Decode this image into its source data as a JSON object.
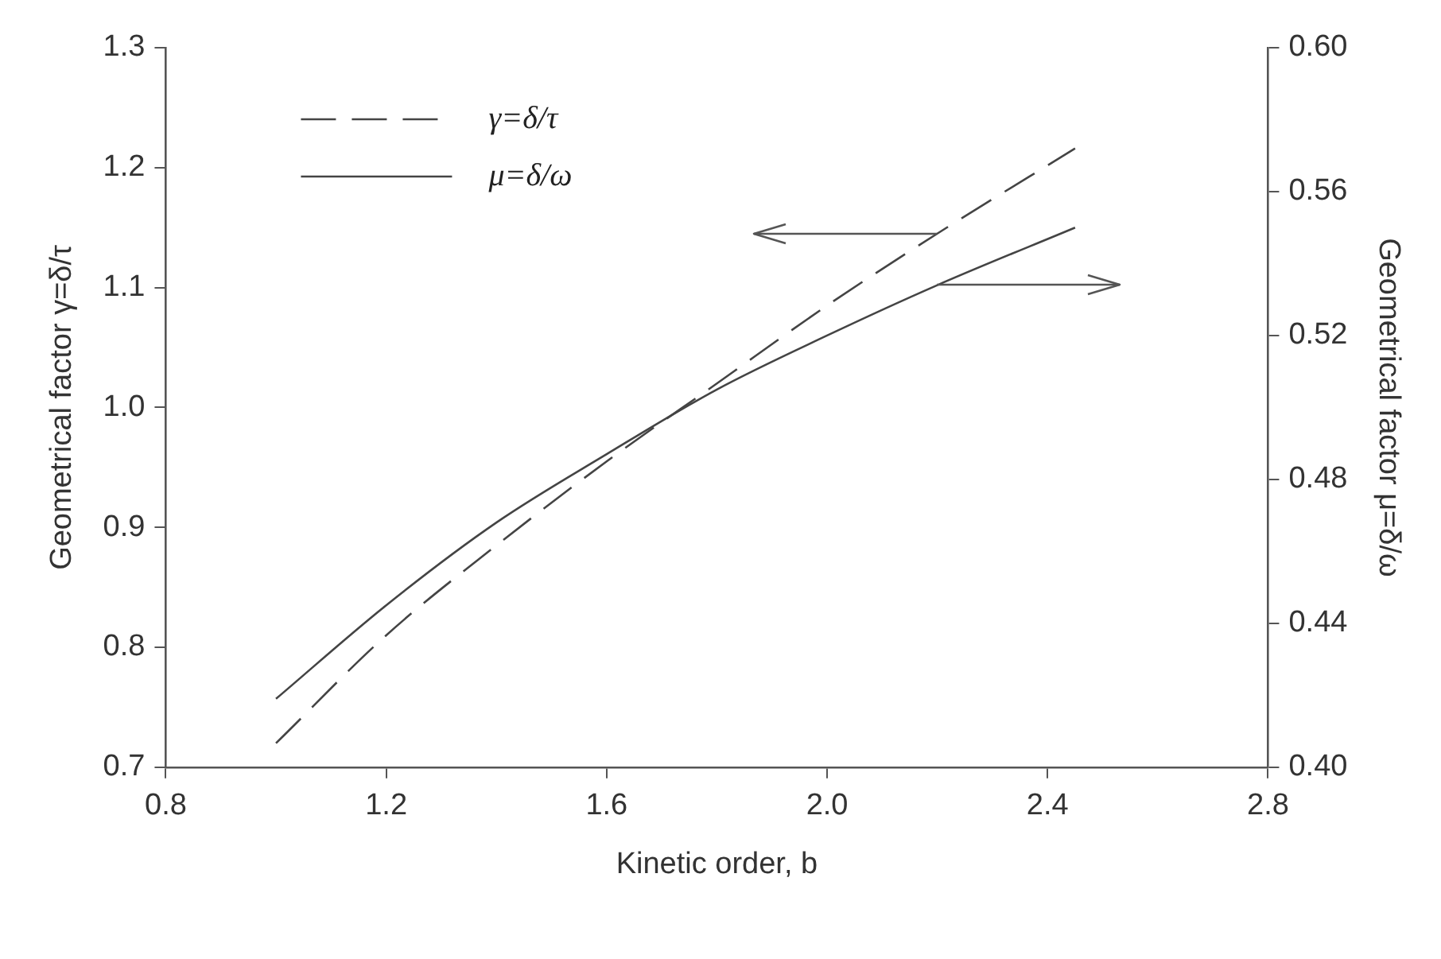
{
  "chart_data": {
    "type": "line",
    "xlabel": "Kinetic order, b",
    "ylabel": "Geometrical factor γ=δ/τ",
    "y2label": "Geometrical factor μ=δ/ω",
    "series": [
      {
        "name": "γ=δ/τ",
        "color": "#444444",
        "line_style": "dashed",
        "x": [
          1.0,
          1.2,
          1.4,
          1.6,
          1.8,
          2.0,
          2.2,
          2.45
        ],
        "values": [
          0.72,
          0.81,
          0.885,
          0.955,
          1.02,
          1.085,
          1.145,
          1.216
        ]
      },
      {
        "name": "μ=δ/ω",
        "color": "#444444",
        "line_style": "solid",
        "axis": "y2",
        "x": [
          1.0,
          1.2,
          1.4,
          1.6,
          1.8,
          2.0,
          2.2,
          2.45
        ],
        "values": [
          0.419,
          0.445,
          0.468,
          0.487,
          0.505,
          0.52,
          0.534,
          0.55
        ]
      }
    ],
    "xlim": [
      0.8,
      2.8
    ],
    "xticks": [
      {
        "value": 0.8,
        "label": "0.8"
      },
      {
        "value": 1.2,
        "label": "1.2"
      },
      {
        "value": 1.6,
        "label": "1.6"
      },
      {
        "value": 2.0,
        "label": "2.0"
      },
      {
        "value": 2.4,
        "label": "2.4"
      },
      {
        "value": 2.8,
        "label": "2.8"
      }
    ],
    "ylim": [
      0.7,
      1.3
    ],
    "yticks": [
      {
        "value": 0.7,
        "label": "0.7"
      },
      {
        "value": 0.8,
        "label": "0.8"
      },
      {
        "value": 0.9,
        "label": "0.9"
      },
      {
        "value": 1.0,
        "label": "1.0"
      },
      {
        "value": 1.1,
        "label": "1.1"
      },
      {
        "value": 1.2,
        "label": "1.2"
      },
      {
        "value": 1.3,
        "label": "1.3"
      }
    ],
    "y2lim": [
      0.4,
      0.6
    ],
    "y2ticks": [
      {
        "value": 0.4,
        "label": "0.40"
      },
      {
        "value": 0.44,
        "label": "0.44"
      },
      {
        "value": 0.48,
        "label": "0.48"
      },
      {
        "value": 0.52,
        "label": "0.52"
      },
      {
        "value": 0.56,
        "label": "0.56"
      },
      {
        "value": 0.6,
        "label": "0.60"
      }
    ],
    "legend": "top left",
    "marker": "none",
    "grid": false
  }
}
